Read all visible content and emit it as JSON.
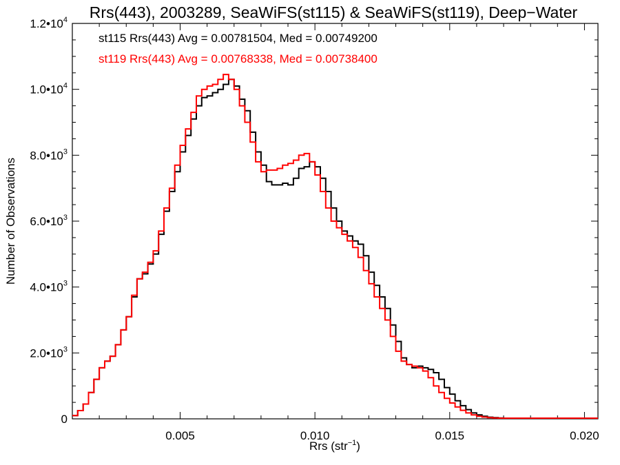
{
  "chart_data": {
    "type": "line",
    "title": "Rrs(443), 2003289, SeaWiFS(st115) & SeaWiFS(st119), Deep−Water",
    "xlabel": "Rrs (str",
    "xlabel_unit_sup": "−1",
    "xlabel_close": ")",
    "ylabel": "Number of Observations",
    "xlim": [
      0.001,
      0.0205
    ],
    "ylim": [
      0,
      12000
    ],
    "x_ticks": [
      {
        "value": 0.005,
        "label": "0.005"
      },
      {
        "value": 0.01,
        "label": "0.010"
      },
      {
        "value": 0.015,
        "label": "0.015"
      },
      {
        "value": 0.02,
        "label": "0.020"
      }
    ],
    "y_ticks": [
      {
        "value": 0,
        "mant": "0",
        "exp": ""
      },
      {
        "value": 2000,
        "mant": "2.0•10",
        "exp": "3"
      },
      {
        "value": 4000,
        "mant": "4.0•10",
        "exp": "3"
      },
      {
        "value": 6000,
        "mant": "6.0•10",
        "exp": "3"
      },
      {
        "value": 8000,
        "mant": "8.0•10",
        "exp": "3"
      },
      {
        "value": 10000,
        "mant": "1.0•10",
        "exp": "4"
      },
      {
        "value": 12000,
        "mant": "1.2•10",
        "exp": "4"
      }
    ],
    "series": [
      {
        "name": "st115",
        "color": "#000000",
        "stats_text": "st115 Rrs(443) Avg = 0.00781504, Med = 0.00749200",
        "points": [
          [
            0.001,
            100
          ],
          [
            0.0012,
            250
          ],
          [
            0.0014,
            450
          ],
          [
            0.0016,
            800
          ],
          [
            0.0018,
            1200
          ],
          [
            0.002,
            1550
          ],
          [
            0.0022,
            1750
          ],
          [
            0.0024,
            1900
          ],
          [
            0.0026,
            2250
          ],
          [
            0.0028,
            2700
          ],
          [
            0.003,
            3100
          ],
          [
            0.0032,
            3700
          ],
          [
            0.0034,
            4250
          ],
          [
            0.0036,
            4400
          ],
          [
            0.0038,
            4700
          ],
          [
            0.004,
            5000
          ],
          [
            0.0042,
            5600
          ],
          [
            0.0044,
            6300
          ],
          [
            0.0046,
            6900
          ],
          [
            0.0048,
            7500
          ],
          [
            0.005,
            8100
          ],
          [
            0.0052,
            8600
          ],
          [
            0.0054,
            9100
          ],
          [
            0.0056,
            9500
          ],
          [
            0.0058,
            9750
          ],
          [
            0.006,
            9800
          ],
          [
            0.0062,
            9900
          ],
          [
            0.0064,
            10000
          ],
          [
            0.0066,
            10150
          ],
          [
            0.0068,
            10300
          ],
          [
            0.007,
            10100
          ],
          [
            0.0072,
            9700
          ],
          [
            0.0074,
            9350
          ],
          [
            0.0076,
            8700
          ],
          [
            0.0078,
            8100
          ],
          [
            0.008,
            7700
          ],
          [
            0.0082,
            7200
          ],
          [
            0.0084,
            7100
          ],
          [
            0.0086,
            7100
          ],
          [
            0.0088,
            7150
          ],
          [
            0.009,
            7100
          ],
          [
            0.0092,
            7300
          ],
          [
            0.0094,
            7600
          ],
          [
            0.0096,
            7650
          ],
          [
            0.0098,
            7800
          ],
          [
            0.01,
            7650
          ],
          [
            0.0102,
            7300
          ],
          [
            0.0104,
            6900
          ],
          [
            0.0106,
            6400
          ],
          [
            0.0108,
            6000
          ],
          [
            0.011,
            5700
          ],
          [
            0.0112,
            5550
          ],
          [
            0.0114,
            5400
          ],
          [
            0.0116,
            5300
          ],
          [
            0.0118,
            4950
          ],
          [
            0.012,
            4450
          ],
          [
            0.0122,
            4050
          ],
          [
            0.0124,
            3700
          ],
          [
            0.0126,
            3350
          ],
          [
            0.0128,
            2850
          ],
          [
            0.013,
            2350
          ],
          [
            0.0132,
            1850
          ],
          [
            0.0134,
            1650
          ],
          [
            0.0136,
            1550
          ],
          [
            0.0138,
            1600
          ],
          [
            0.014,
            1550
          ],
          [
            0.0142,
            1500
          ],
          [
            0.0144,
            1400
          ],
          [
            0.0146,
            1200
          ],
          [
            0.0148,
            950
          ],
          [
            0.015,
            750
          ],
          [
            0.0152,
            550
          ],
          [
            0.0154,
            400
          ],
          [
            0.0156,
            280
          ],
          [
            0.0158,
            180
          ],
          [
            0.016,
            120
          ],
          [
            0.0162,
            80
          ],
          [
            0.0164,
            50
          ],
          [
            0.0166,
            35
          ],
          [
            0.0168,
            25
          ],
          [
            0.017,
            18
          ],
          [
            0.0175,
            10
          ],
          [
            0.018,
            6
          ],
          [
            0.019,
            3
          ],
          [
            0.0205,
            0
          ]
        ]
      },
      {
        "name": "st119",
        "color": "#ff0000",
        "stats_text": "st119 Rrs(443) Avg = 0.00768338, Med = 0.00738400",
        "points": [
          [
            0.001,
            100
          ],
          [
            0.0012,
            250
          ],
          [
            0.0014,
            450
          ],
          [
            0.0016,
            800
          ],
          [
            0.0018,
            1200
          ],
          [
            0.002,
            1550
          ],
          [
            0.0022,
            1750
          ],
          [
            0.0024,
            1900
          ],
          [
            0.0026,
            2250
          ],
          [
            0.0028,
            2700
          ],
          [
            0.003,
            3100
          ],
          [
            0.0032,
            3750
          ],
          [
            0.0034,
            4250
          ],
          [
            0.0036,
            4450
          ],
          [
            0.0038,
            4750
          ],
          [
            0.004,
            5100
          ],
          [
            0.0042,
            5700
          ],
          [
            0.0044,
            6400
          ],
          [
            0.0046,
            7000
          ],
          [
            0.0048,
            7700
          ],
          [
            0.005,
            8300
          ],
          [
            0.0052,
            8800
          ],
          [
            0.0054,
            9300
          ],
          [
            0.0056,
            9800
          ],
          [
            0.0058,
            10000
          ],
          [
            0.006,
            10100
          ],
          [
            0.0062,
            10150
          ],
          [
            0.0064,
            10300
          ],
          [
            0.0066,
            10450
          ],
          [
            0.0068,
            10300
          ],
          [
            0.007,
            10000
          ],
          [
            0.0072,
            9500
          ],
          [
            0.0074,
            9000
          ],
          [
            0.0076,
            8400
          ],
          [
            0.0078,
            7800
          ],
          [
            0.008,
            7500
          ],
          [
            0.0082,
            7550
          ],
          [
            0.0084,
            7550
          ],
          [
            0.0086,
            7600
          ],
          [
            0.0088,
            7700
          ],
          [
            0.009,
            7750
          ],
          [
            0.0092,
            7850
          ],
          [
            0.0094,
            8000
          ],
          [
            0.0096,
            8050
          ],
          [
            0.0098,
            7800
          ],
          [
            0.01,
            7400
          ],
          [
            0.0102,
            6900
          ],
          [
            0.0104,
            6400
          ],
          [
            0.0106,
            6000
          ],
          [
            0.0108,
            5800
          ],
          [
            0.011,
            5600
          ],
          [
            0.0112,
            5400
          ],
          [
            0.0114,
            5200
          ],
          [
            0.0116,
            4900
          ],
          [
            0.0118,
            4500
          ],
          [
            0.012,
            4100
          ],
          [
            0.0122,
            3700
          ],
          [
            0.0124,
            3350
          ],
          [
            0.0126,
            3000
          ],
          [
            0.0128,
            2500
          ],
          [
            0.013,
            2050
          ],
          [
            0.0132,
            1750
          ],
          [
            0.0134,
            1650
          ],
          [
            0.0136,
            1600
          ],
          [
            0.0138,
            1550
          ],
          [
            0.014,
            1450
          ],
          [
            0.0142,
            1250
          ],
          [
            0.0144,
            1000
          ],
          [
            0.0146,
            800
          ],
          [
            0.0148,
            620
          ],
          [
            0.015,
            480
          ],
          [
            0.0152,
            360
          ],
          [
            0.0154,
            260
          ],
          [
            0.0156,
            180
          ],
          [
            0.0158,
            120
          ],
          [
            0.016,
            80
          ],
          [
            0.0162,
            55
          ],
          [
            0.0164,
            35
          ],
          [
            0.0166,
            25
          ],
          [
            0.0168,
            18
          ],
          [
            0.017,
            12
          ],
          [
            0.0175,
            8
          ],
          [
            0.018,
            5
          ],
          [
            0.019,
            3
          ],
          [
            0.0205,
            0
          ]
        ]
      }
    ],
    "grid": false,
    "legend": "top-left"
  }
}
